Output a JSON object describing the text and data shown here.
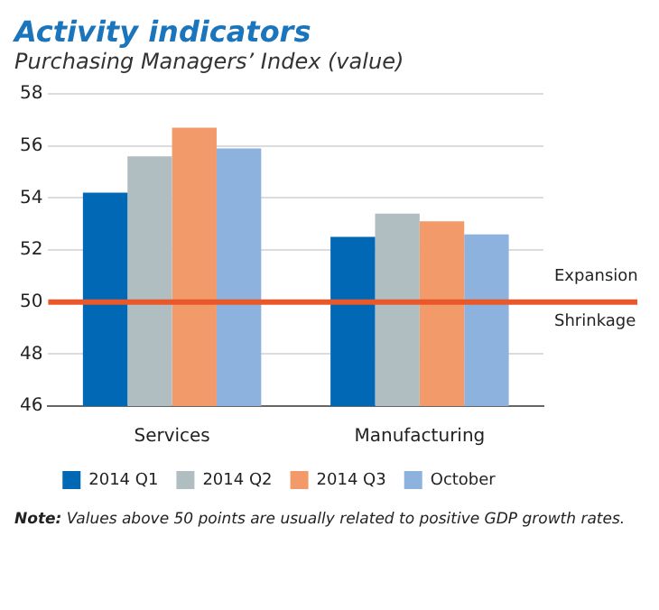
{
  "chart_data": {
    "type": "bar",
    "title": "Activity indicators",
    "subtitle": "Purchasing Managers’ Index (value)",
    "categories": [
      "Services",
      "Manufacturing"
    ],
    "series": [
      {
        "name": "2014 Q1",
        "color": "#0068b4",
        "values": [
          54.2,
          52.5
        ]
      },
      {
        "name": "2014 Q2",
        "color": "#b0bec1",
        "values": [
          55.6,
          53.4
        ]
      },
      {
        "name": "2014 Q3",
        "color": "#f29a6a",
        "values": [
          56.7,
          53.1
        ]
      },
      {
        "name": "October",
        "color": "#8db2de",
        "values": [
          55.9,
          52.6
        ]
      }
    ],
    "ylim": [
      46,
      58
    ],
    "yticks": [
      46,
      48,
      50,
      52,
      54,
      56,
      58
    ],
    "grid": "y",
    "legend": "bottom",
    "ref_lines": [
      {
        "axis": "y",
        "value": 50,
        "color": "#e8582a",
        "label": "Expansion"
      }
    ],
    "annotations": [
      "Shrinkage",
      "Note: Values above 50 points are usually related to positive GDP growth rates."
    ]
  }
}
